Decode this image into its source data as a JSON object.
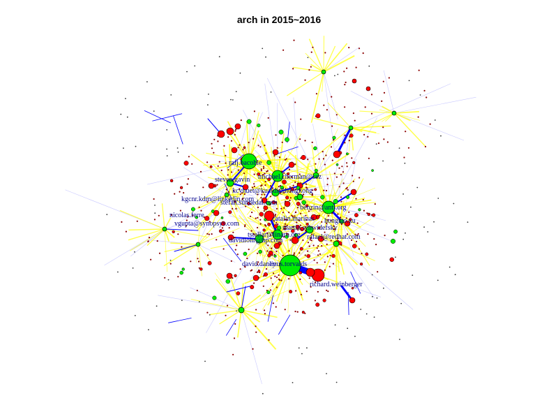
{
  "title": "arch in 2015~2016",
  "colors": {
    "core_node": "#00ee00",
    "peripheral_node": "#ff0000",
    "leaf_node": "#8b0000",
    "strong_edge": "#0000ff",
    "weak_edge": "#ffff00",
    "faint_edge": "#c8c8ff",
    "label": "#00008b"
  },
  "labels": [
    "rafj.bacohle",
    "michael.cherman@cez",
    "steven.gavin",
    "kcvhuet@kuaidi@hongkong",
    "kgcnr.kdm@linkedin.com",
    "stefan.sunnedal.com",
    "benzin@anti.org",
    "nicolas.ferre",
    "vgupta@synopsys.com",
    "catalin.marinas",
    "hongtao.xu",
    "martin.schwidefsky",
    "tstellar@linaro.org",
    "davidlohr@hp.com",
    "rafael@redhat.com",
    "david.daney",
    "linus.torvalds",
    "richard.weinberger"
  ]
}
